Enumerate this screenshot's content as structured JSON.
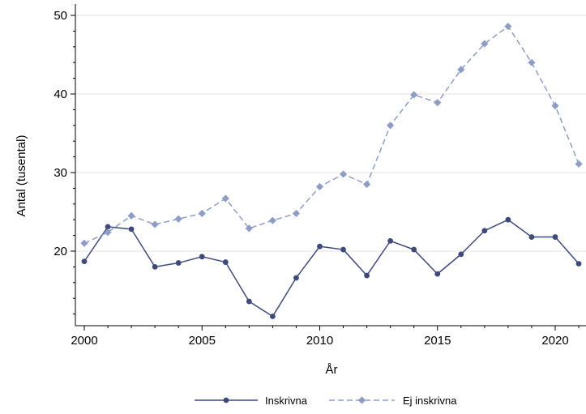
{
  "chart_data": {
    "type": "line",
    "title": "",
    "xlabel": "År",
    "ylabel": "Antal (tusental)",
    "xlim": [
      2000,
      2021
    ],
    "ylim": [
      11,
      51
    ],
    "xticks": [
      2000,
      2005,
      2010,
      2015,
      2020
    ],
    "yticks": [
      20,
      30,
      40,
      50
    ],
    "grid": true,
    "legend": "bottom",
    "x": [
      2000,
      2001,
      2002,
      2003,
      2004,
      2005,
      2006,
      2007,
      2008,
      2009,
      2010,
      2011,
      2012,
      2013,
      2014,
      2015,
      2016,
      2017,
      2018,
      2019,
      2020,
      2021
    ],
    "series": [
      {
        "name": "Inskrivna",
        "color": "#3e4a7b",
        "line_style": "solid",
        "marker": "circle",
        "values": [
          18.7,
          23.1,
          22.8,
          18.0,
          18.5,
          19.3,
          18.6,
          13.6,
          11.7,
          16.6,
          20.6,
          20.2,
          16.9,
          21.3,
          20.2,
          17.1,
          19.6,
          22.6,
          24.0,
          21.8,
          21.8,
          18.4
        ]
      },
      {
        "name": "Ej inskrivna",
        "color": "#8d9dc6",
        "line_style": "dashed",
        "marker": "diamond",
        "values": [
          21.0,
          22.4,
          24.5,
          23.4,
          24.1,
          24.8,
          26.7,
          22.9,
          23.9,
          24.8,
          28.2,
          29.8,
          28.5,
          36.0,
          39.9,
          38.9,
          43.1,
          46.4,
          48.6,
          44.0,
          38.5,
          31.1
        ]
      }
    ]
  }
}
